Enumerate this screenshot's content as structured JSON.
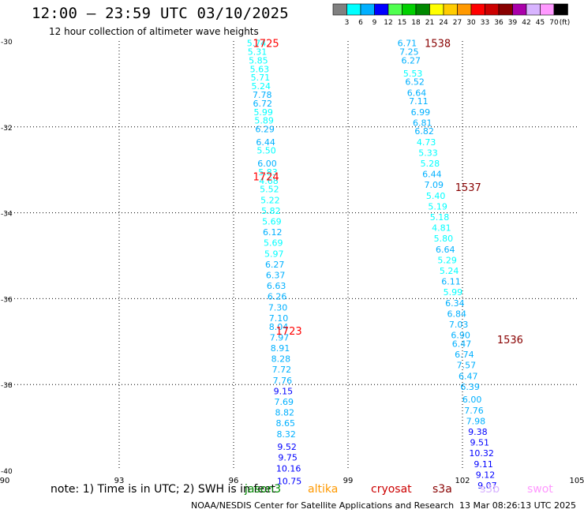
{
  "header": {
    "title": "12:00 – 23:59 UTC 03/10/2025",
    "subtitle": "12 hour collection of altimeter wave heights"
  },
  "legend": {
    "swatches": [
      {
        "color": "#808080",
        "label": "3"
      },
      {
        "color": "#00ffff",
        "label": "6"
      },
      {
        "color": "#00b0ff",
        "label": "9"
      },
      {
        "color": "#0000ff",
        "label": "12"
      },
      {
        "color": "#50ff50",
        "label": "15"
      },
      {
        "color": "#00d000",
        "label": "18"
      },
      {
        "color": "#008800",
        "label": "21"
      },
      {
        "color": "#ffff00",
        "label": "24"
      },
      {
        "color": "#ffcc00",
        "label": "27"
      },
      {
        "color": "#ff9900",
        "label": "30"
      },
      {
        "color": "#ff0000",
        "label": "33"
      },
      {
        "color": "#cc0000",
        "label": "36"
      },
      {
        "color": "#880000",
        "label": "39"
      },
      {
        "color": "#aa00aa",
        "label": "42"
      },
      {
        "color": "#d8b4ff",
        "label": "45"
      },
      {
        "color": "#ff99ff",
        "label": "70"
      },
      {
        "color": "#000000",
        "label": ""
      }
    ],
    "unit": "(ft)"
  },
  "axes": {
    "x_ticks": [
      "90",
      "93",
      "96",
      "99",
      "102",
      "105"
    ],
    "y_ticks": [
      "-30",
      "-32",
      "-34",
      "-36",
      "-38",
      "-40"
    ]
  },
  "note": "note: 1) Time is in UTC; 2) SWH is in feet",
  "satellites": [
    {
      "name": "jason3",
      "color": "#008800"
    },
    {
      "name": "altika",
      "color": "#ff9900"
    },
    {
      "name": "cryosat",
      "color": "#cc0000"
    },
    {
      "name": "s3a",
      "color": "#880000"
    },
    {
      "name": "s3b",
      "color": "#d8b4ff"
    },
    {
      "name": "swot",
      "color": "#ff99ff"
    }
  ],
  "footer": {
    "credit": "NOAA/NESDIS Center for Satellite Applications and Research",
    "timestamp": "13 Mar 08:26:13 UTC 2025"
  },
  "chart_data": {
    "type": "scatter",
    "xlim": [
      90,
      105
    ],
    "ylim": [
      -40,
      -30
    ],
    "grid": true,
    "series": [
      {
        "name": "cryosat",
        "time_labels": [
          {
            "text": "1725",
            "x": 96.85,
            "y": -30.05
          },
          {
            "text": "1724",
            "x": 96.85,
            "y": -33.15
          },
          {
            "text": "1723",
            "x": 97.45,
            "y": -36.75
          }
        ],
        "points": [
          {
            "lon": 96.6,
            "lat": -30.05,
            "swh": "5.74"
          },
          {
            "lon": 96.62,
            "lat": -30.25,
            "swh": "5.31"
          },
          {
            "lon": 96.65,
            "lat": -30.45,
            "swh": "5.85"
          },
          {
            "lon": 96.68,
            "lat": -30.65,
            "swh": "5.63"
          },
          {
            "lon": 96.7,
            "lat": -30.85,
            "swh": "5.71"
          },
          {
            "lon": 96.72,
            "lat": -31.05,
            "swh": "5.24"
          },
          {
            "lon": 96.75,
            "lat": -31.25,
            "swh": "7.78"
          },
          {
            "lon": 96.76,
            "lat": -31.45,
            "swh": "6.72"
          },
          {
            "lon": 96.78,
            "lat": -31.65,
            "swh": "5.99"
          },
          {
            "lon": 96.8,
            "lat": -31.85,
            "swh": "5.89"
          },
          {
            "lon": 96.82,
            "lat": -32.05,
            "swh": "6.29"
          },
          {
            "lon": 96.84,
            "lat": -32.35,
            "swh": "6.44"
          },
          {
            "lon": 96.86,
            "lat": -32.55,
            "swh": "5.50"
          },
          {
            "lon": 96.88,
            "lat": -32.85,
            "swh": "6.00"
          },
          {
            "lon": 96.9,
            "lat": -33.05,
            "swh": "5.83"
          },
          {
            "lon": 96.92,
            "lat": -33.25,
            "swh": "4.68"
          },
          {
            "lon": 96.94,
            "lat": -33.45,
            "swh": "5.52"
          },
          {
            "lon": 96.96,
            "lat": -33.7,
            "swh": "5.22"
          },
          {
            "lon": 96.98,
            "lat": -33.95,
            "swh": "5.82"
          },
          {
            "lon": 97.0,
            "lat": -34.2,
            "swh": "5.69"
          },
          {
            "lon": 97.02,
            "lat": -34.45,
            "swh": "6.12"
          },
          {
            "lon": 97.04,
            "lat": -34.7,
            "swh": "5.69"
          },
          {
            "lon": 97.06,
            "lat": -34.95,
            "swh": "5.97"
          },
          {
            "lon": 97.08,
            "lat": -35.2,
            "swh": "6.27"
          },
          {
            "lon": 97.1,
            "lat": -35.45,
            "swh": "6.37"
          },
          {
            "lon": 97.12,
            "lat": -35.7,
            "swh": "6.63"
          },
          {
            "lon": 97.14,
            "lat": -35.95,
            "swh": "6.26"
          },
          {
            "lon": 97.16,
            "lat": -36.2,
            "swh": "7.30"
          },
          {
            "lon": 97.18,
            "lat": -36.45,
            "swh": "7.10"
          },
          {
            "lon": 97.18,
            "lat": -36.65,
            "swh": "8.04"
          },
          {
            "lon": 97.2,
            "lat": -36.9,
            "swh": "7.97"
          },
          {
            "lon": 97.22,
            "lat": -37.15,
            "swh": "8.91"
          },
          {
            "lon": 97.24,
            "lat": -37.4,
            "swh": "8.28"
          },
          {
            "lon": 97.26,
            "lat": -37.65,
            "swh": "7.72"
          },
          {
            "lon": 97.28,
            "lat": -37.9,
            "swh": "7.76"
          },
          {
            "lon": 97.3,
            "lat": -38.15,
            "swh": "9.15"
          },
          {
            "lon": 97.32,
            "lat": -38.4,
            "swh": "7.69"
          },
          {
            "lon": 97.34,
            "lat": -38.65,
            "swh": "8.82"
          },
          {
            "lon": 97.36,
            "lat": -38.9,
            "swh": "8.65"
          },
          {
            "lon": 97.38,
            "lat": -39.15,
            "swh": "8.32"
          },
          {
            "lon": 97.4,
            "lat": -39.45,
            "swh": "9.52"
          },
          {
            "lon": 97.42,
            "lat": -39.7,
            "swh": "9.75"
          },
          {
            "lon": 97.44,
            "lat": -39.95,
            "swh": "10.16"
          },
          {
            "lon": 97.46,
            "lat": -40.25,
            "swh": "10.75"
          }
        ]
      },
      {
        "name": "s3a",
        "time_labels": [
          {
            "text": "1538",
            "x": 101.35,
            "y": -30.05
          },
          {
            "text": "1537",
            "x": 102.15,
            "y": -33.4
          },
          {
            "text": "1536",
            "x": 103.25,
            "y": -36.95
          }
        ],
        "points": [
          {
            "lon": 100.55,
            "lat": -30.05,
            "swh": "6.71"
          },
          {
            "lon": 100.6,
            "lat": -30.25,
            "swh": "7.25"
          },
          {
            "lon": 100.65,
            "lat": -30.45,
            "swh": "6.27"
          },
          {
            "lon": 100.7,
            "lat": -30.75,
            "swh": "5.53"
          },
          {
            "lon": 100.75,
            "lat": -30.95,
            "swh": "6.52"
          },
          {
            "lon": 100.8,
            "lat": -31.2,
            "swh": "6.64"
          },
          {
            "lon": 100.85,
            "lat": -31.4,
            "swh": "7.11"
          },
          {
            "lon": 100.9,
            "lat": -31.65,
            "swh": "6.99"
          },
          {
            "lon": 100.95,
            "lat": -31.9,
            "swh": "6.81"
          },
          {
            "lon": 101.0,
            "lat": -32.1,
            "swh": "6.82"
          },
          {
            "lon": 101.05,
            "lat": -32.35,
            "swh": "4.73"
          },
          {
            "lon": 101.1,
            "lat": -32.6,
            "swh": "5.33"
          },
          {
            "lon": 101.15,
            "lat": -32.85,
            "swh": "5.28"
          },
          {
            "lon": 101.2,
            "lat": -33.1,
            "swh": "6.44"
          },
          {
            "lon": 101.25,
            "lat": -33.35,
            "swh": "7.09"
          },
          {
            "lon": 101.3,
            "lat": -33.6,
            "swh": "5.40"
          },
          {
            "lon": 101.35,
            "lat": -33.85,
            "swh": "5.19"
          },
          {
            "lon": 101.4,
            "lat": -34.1,
            "swh": "5.18"
          },
          {
            "lon": 101.45,
            "lat": -34.35,
            "swh": "4.81"
          },
          {
            "lon": 101.5,
            "lat": -34.6,
            "swh": "5.80"
          },
          {
            "lon": 101.55,
            "lat": -34.85,
            "swh": "6.64"
          },
          {
            "lon": 101.6,
            "lat": -35.1,
            "swh": "5.29"
          },
          {
            "lon": 101.65,
            "lat": -35.35,
            "swh": "5.24"
          },
          {
            "lon": 101.7,
            "lat": -35.6,
            "swh": "6.11"
          },
          {
            "lon": 101.75,
            "lat": -35.85,
            "swh": "5.99"
          },
          {
            "lon": 101.8,
            "lat": -36.1,
            "swh": "6.34"
          },
          {
            "lon": 101.85,
            "lat": -36.35,
            "swh": "6.84"
          },
          {
            "lon": 101.9,
            "lat": -36.6,
            "swh": "7.03"
          },
          {
            "lon": 101.95,
            "lat": -36.85,
            "swh": "6.90"
          },
          {
            "lon": 101.98,
            "lat": -37.05,
            "swh": "6.47"
          },
          {
            "lon": 102.05,
            "lat": -37.3,
            "swh": "6.74"
          },
          {
            "lon": 102.1,
            "lat": -37.55,
            "swh": "7.57"
          },
          {
            "lon": 102.15,
            "lat": -37.8,
            "swh": "6.47"
          },
          {
            "lon": 102.2,
            "lat": -38.05,
            "swh": "6.39"
          },
          {
            "lon": 102.25,
            "lat": -38.35,
            "swh": "6.00"
          },
          {
            "lon": 102.3,
            "lat": -38.6,
            "swh": "7.76"
          },
          {
            "lon": 102.35,
            "lat": -38.85,
            "swh": "7.98"
          },
          {
            "lon": 102.4,
            "lat": -39.1,
            "swh": "9.38"
          },
          {
            "lon": 102.45,
            "lat": -39.35,
            "swh": "9.51"
          },
          {
            "lon": 102.5,
            "lat": -39.6,
            "swh": "10.32"
          },
          {
            "lon": 102.55,
            "lat": -39.85,
            "swh": "9.11"
          },
          {
            "lon": 102.6,
            "lat": -40.1,
            "swh": "9.12"
          },
          {
            "lon": 102.65,
            "lat": -40.35,
            "swh": "9.07"
          }
        ]
      }
    ]
  }
}
